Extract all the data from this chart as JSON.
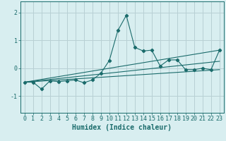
{
  "xlabel": "Humidex (Indice chaleur)",
  "ylabel": "",
  "background_color": "#d8eef0",
  "grid_color": "#b8d0d4",
  "line_color": "#1a6b6b",
  "xlim": [
    -0.5,
    23.5
  ],
  "ylim": [
    -1.6,
    2.4
  ],
  "yticks": [
    -1,
    0,
    1,
    2
  ],
  "xticks": [
    0,
    1,
    2,
    3,
    4,
    5,
    6,
    7,
    8,
    9,
    10,
    11,
    12,
    13,
    14,
    15,
    16,
    17,
    18,
    19,
    20,
    21,
    22,
    23
  ],
  "main_series_x": [
    0,
    1,
    2,
    3,
    4,
    5,
    6,
    7,
    8,
    9,
    10,
    11,
    12,
    13,
    14,
    15,
    16,
    17,
    18,
    19,
    20,
    21,
    22,
    23
  ],
  "main_series_y": [
    -0.5,
    -0.5,
    -0.75,
    -0.45,
    -0.48,
    -0.45,
    -0.42,
    -0.52,
    -0.42,
    -0.18,
    0.28,
    1.35,
    1.9,
    0.75,
    0.62,
    0.65,
    0.08,
    0.3,
    0.3,
    -0.05,
    -0.05,
    0.0,
    -0.05,
    0.65
  ],
  "lower_line_x": [
    0,
    23
  ],
  "lower_line_y": [
    -0.5,
    -0.05
  ],
  "upper_line_x": [
    0,
    23
  ],
  "upper_line_y": [
    -0.5,
    0.65
  ],
  "mid_line_x": [
    0,
    23
  ],
  "mid_line_y": [
    -0.5,
    0.25
  ],
  "font_color": "#1a6b6b",
  "font_size_label": 6.5,
  "font_size_tick": 6.0,
  "font_size_xlabel": 7.0
}
